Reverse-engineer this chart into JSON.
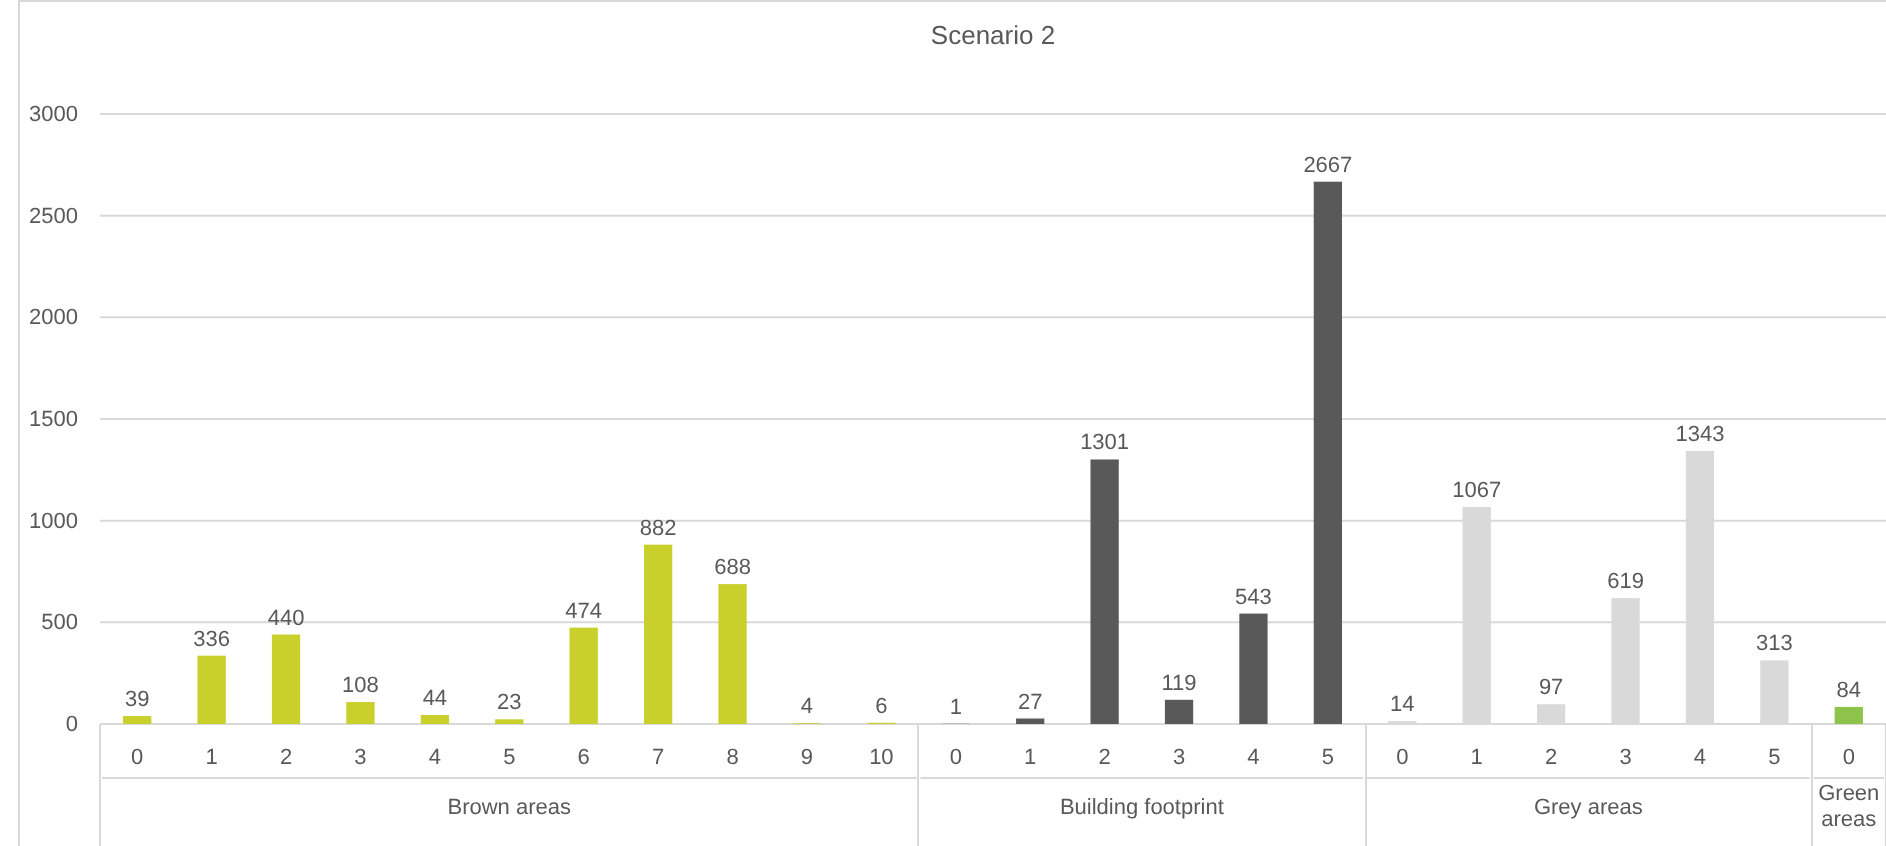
{
  "chart_data": {
    "type": "bar",
    "title": "Scenario 2",
    "categories": [
      "0",
      "1",
      "2",
      "3",
      "4",
      "5",
      "6",
      "7",
      "8",
      "9",
      "10",
      "0",
      "1",
      "2",
      "3",
      "4",
      "5",
      "0",
      "1",
      "2",
      "3",
      "4",
      "5",
      "0"
    ],
    "series": [
      {
        "color": "#c9cf2b",
        "values": [
          39,
          336,
          440,
          108,
          44,
          23,
          474,
          882,
          688,
          4,
          6,
          null,
          null,
          null,
          null,
          null,
          null,
          null,
          null,
          null,
          null,
          null,
          null,
          null
        ]
      },
      {
        "color": "#595959",
        "values": [
          null,
          null,
          null,
          null,
          null,
          null,
          null,
          null,
          null,
          null,
          null,
          1,
          27,
          1301,
          119,
          543,
          2667,
          null,
          null,
          null,
          null,
          null,
          null,
          null
        ]
      },
      {
        "color": "#d9d9d9",
        "values": [
          null,
          null,
          null,
          null,
          null,
          null,
          null,
          null,
          null,
          null,
          null,
          null,
          null,
          null,
          null,
          null,
          null,
          14,
          1067,
          97,
          619,
          1343,
          313,
          null
        ]
      },
      {
        "color": "#8dc34a",
        "values": [
          null,
          null,
          null,
          null,
          null,
          null,
          null,
          null,
          null,
          null,
          null,
          null,
          null,
          null,
          null,
          null,
          null,
          null,
          null,
          null,
          null,
          null,
          null,
          84
        ]
      }
    ],
    "annotations": [
      "Brown areas",
      "Building footprint",
      "Grey areas",
      "Green areas"
    ],
    "ylim": [
      0,
      3000
    ],
    "yticks": [
      0,
      500,
      1000,
      1500,
      2000,
      2500,
      3000
    ],
    "grid": "y",
    "data_labels": true
  }
}
